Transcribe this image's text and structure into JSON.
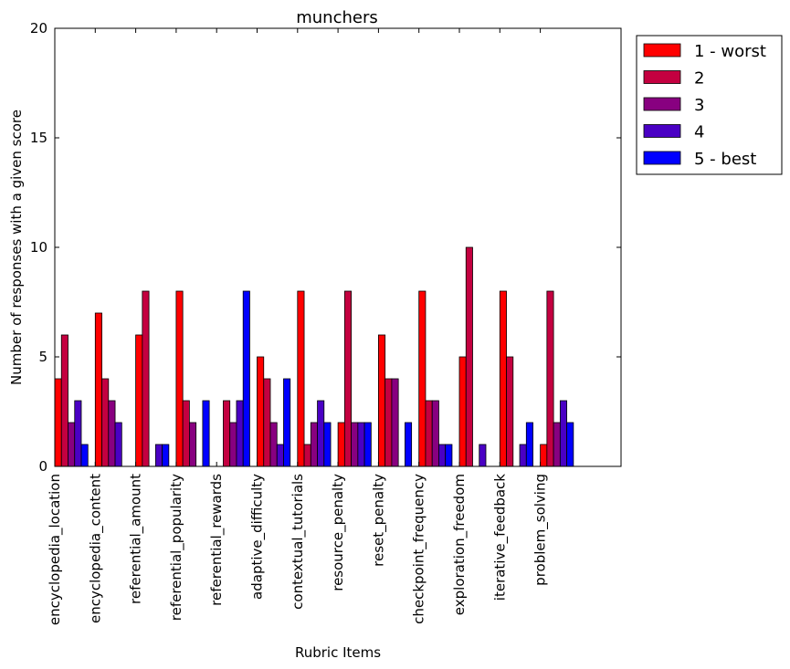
{
  "chart_data": {
    "type": "bar",
    "title": "munchers",
    "xlabel": "Rubric Items",
    "ylabel": "Number of responses with a given score",
    "ylim": [
      0,
      20
    ],
    "yticks": [
      0,
      5,
      10,
      15,
      20
    ],
    "categories": [
      "encyclopedia_location",
      "encyclopedia_content",
      "referential_amount",
      "referential_popularity",
      "referential_rewards",
      "adaptive_difficulty",
      "contextual_tutorials",
      "resource_penalty",
      "reset_penalty",
      "checkpoint_frequency",
      "exploration_freedom",
      "iterative_feedback",
      "problem_solving"
    ],
    "series": [
      {
        "name": "1 - worst",
        "color": "#ff0000",
        "values": [
          4,
          7,
          6,
          8,
          0,
          5,
          8,
          2,
          6,
          8,
          5,
          8,
          1
        ]
      },
      {
        "name": "2",
        "color": "#c40040",
        "values": [
          6,
          4,
          8,
          3,
          3,
          4,
          1,
          8,
          4,
          3,
          10,
          5,
          8
        ]
      },
      {
        "name": "3",
        "color": "#880080",
        "values": [
          2,
          3,
          0,
          2,
          2,
          2,
          2,
          2,
          4,
          3,
          0,
          0,
          2
        ]
      },
      {
        "name": "4",
        "color": "#4a00c4",
        "values": [
          3,
          2,
          1,
          0,
          3,
          1,
          3,
          2,
          0,
          1,
          1,
          1,
          3
        ]
      },
      {
        "name": "5 - best",
        "color": "#0000ff",
        "values": [
          1,
          0,
          1,
          3,
          8,
          4,
          2,
          2,
          2,
          1,
          0,
          2,
          2
        ]
      }
    ],
    "legend_position": "outside-top-right",
    "grid": false
  }
}
